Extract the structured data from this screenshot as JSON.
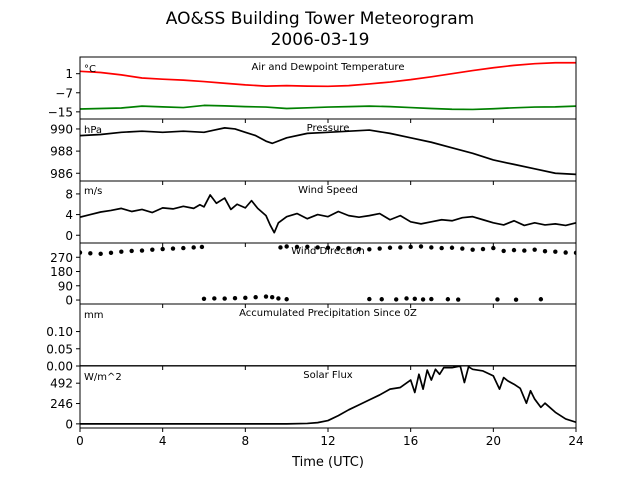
{
  "title": "AO&SS Building Tower Meteorogram",
  "subtitle": "2006-03-19",
  "xlabel": "Time (UTC)",
  "colors": {
    "temperature": "#ff0000",
    "dewpoint": "#008000",
    "data": "#000000",
    "frame": "#000000"
  },
  "chart_data": [
    {
      "type": "line",
      "panel": "temperature",
      "title": "Air and Dewpoint Temperature",
      "unit": "°C",
      "ylim": [
        -18,
        8
      ],
      "yticks": [
        1,
        -7,
        -15
      ],
      "ytick_labels": [
        "1",
        "−7",
        "−15"
      ],
      "xlim": [
        0,
        24
      ],
      "series": [
        {
          "key": "temperature",
          "color": "#ff0000",
          "x": [
            0,
            1,
            2,
            3,
            4,
            5,
            6,
            7,
            8,
            9,
            10,
            11,
            12,
            13,
            14,
            15,
            16,
            17,
            18,
            19,
            20,
            21,
            22,
            23,
            24
          ],
          "values": [
            2.0,
            1.5,
            0.5,
            -0.8,
            -1.3,
            -1.7,
            -2.3,
            -3.0,
            -3.7,
            -4.2,
            -4.0,
            -4.2,
            -4.3,
            -4.0,
            -3.3,
            -2.5,
            -1.5,
            -0.3,
            1.0,
            2.3,
            3.5,
            4.5,
            5.2,
            5.6,
            5.6
          ]
        },
        {
          "key": "dewpoint",
          "color": "#008000",
          "x": [
            0,
            1,
            2,
            3,
            4,
            5,
            6,
            7,
            8,
            9,
            10,
            11,
            12,
            13,
            14,
            15,
            16,
            17,
            18,
            19,
            20,
            21,
            22,
            23,
            24
          ],
          "values": [
            -13.8,
            -13.6,
            -13.4,
            -12.6,
            -12.9,
            -13.2,
            -12.3,
            -12.5,
            -12.8,
            -13.0,
            -13.6,
            -13.3,
            -13.0,
            -12.8,
            -12.6,
            -12.8,
            -13.2,
            -13.6,
            -13.9,
            -14.0,
            -13.7,
            -13.3,
            -13.0,
            -12.9,
            -12.6
          ]
        }
      ]
    },
    {
      "type": "line",
      "panel": "pressure",
      "title": "Pressure",
      "unit": "hPa",
      "ylim": [
        985.3,
        990.9
      ],
      "yticks": [
        990,
        988,
        986
      ],
      "ytick_labels": [
        "990",
        "988",
        "986"
      ],
      "xlim": [
        0,
        24
      ],
      "series": [
        {
          "key": "pressure",
          "color": "#000000",
          "x": [
            0,
            1,
            2,
            3,
            4,
            5,
            6,
            6.5,
            7,
            7.5,
            8,
            8.5,
            9,
            9.3,
            10,
            11,
            12,
            13,
            14,
            15,
            16,
            17,
            18,
            19,
            20,
            21,
            22,
            23,
            24
          ],
          "values": [
            989.4,
            989.5,
            989.7,
            989.8,
            989.7,
            989.8,
            989.7,
            989.9,
            990.1,
            990.0,
            989.7,
            989.4,
            988.9,
            988.7,
            989.2,
            989.6,
            989.7,
            989.8,
            989.9,
            989.6,
            989.2,
            988.8,
            988.3,
            987.8,
            987.2,
            986.8,
            986.4,
            986.0,
            985.9
          ]
        }
      ]
    },
    {
      "type": "line",
      "panel": "wind-speed",
      "title": "Wind Speed",
      "unit": "m/s",
      "ylim": [
        -1.5,
        10.5
      ],
      "yticks": [
        8,
        4,
        0
      ],
      "ytick_labels": [
        "8",
        "4",
        "0"
      ],
      "xlim": [
        0,
        24
      ],
      "series": [
        {
          "key": "wind-speed",
          "color": "#000000",
          "x": [
            0,
            0.5,
            1,
            1.5,
            2,
            2.5,
            3,
            3.5,
            4,
            4.5,
            5,
            5.5,
            5.8,
            6,
            6.3,
            6.6,
            7,
            7.3,
            7.6,
            8,
            8.3,
            8.6,
            9,
            9.2,
            9.4,
            9.6,
            10,
            10.5,
            11,
            11.5,
            12,
            12.5,
            13,
            13.5,
            14,
            14.5,
            15,
            15.5,
            16,
            16.5,
            17,
            17.5,
            18,
            18.5,
            19,
            19.5,
            20,
            20.5,
            21,
            21.5,
            22,
            22.5,
            23,
            23.5,
            24
          ],
          "values": [
            3.5,
            4.0,
            4.5,
            4.8,
            5.2,
            4.6,
            5.0,
            4.4,
            5.3,
            5.1,
            5.6,
            5.2,
            5.9,
            5.5,
            7.8,
            6.2,
            7.2,
            5.0,
            6.0,
            5.3,
            6.7,
            5.2,
            3.8,
            2.0,
            0.5,
            2.4,
            3.6,
            4.2,
            3.2,
            4.0,
            3.6,
            4.6,
            3.8,
            3.5,
            3.8,
            4.2,
            3.0,
            3.8,
            2.6,
            2.2,
            2.6,
            3.0,
            2.8,
            3.4,
            3.6,
            3.0,
            2.4,
            2.0,
            2.8,
            1.9,
            2.4,
            2.0,
            2.2,
            1.9,
            2.4
          ]
        }
      ]
    },
    {
      "type": "scatter",
      "panel": "wind-direction",
      "title": "Wind Direction",
      "ylim": [
        -25,
        360
      ],
      "yticks": [
        270,
        180,
        90,
        0
      ],
      "ytick_labels": [
        "270",
        "180",
        "90",
        "0"
      ],
      "xlim": [
        0,
        24
      ],
      "series": [
        {
          "key": "wind-direction-high",
          "color": "#000000",
          "x": [
            0,
            0.5,
            1,
            1.5,
            2,
            2.5,
            3,
            3.5,
            4,
            4.5,
            5,
            5.5,
            5.9,
            9.7,
            10,
            10.5,
            11,
            11.5,
            12,
            12.5,
            13,
            13.5,
            14,
            14.5,
            15,
            15.5,
            16,
            16.5,
            17,
            17.5,
            18,
            18.5,
            19,
            19.5,
            20,
            20.5,
            21,
            21.5,
            22,
            22.5,
            23,
            23.5,
            24
          ],
          "values": [
            300,
            295,
            292,
            298,
            305,
            310,
            312,
            318,
            322,
            325,
            328,
            332,
            335,
            332,
            338,
            335,
            336,
            332,
            330,
            328,
            325,
            322,
            320,
            325,
            330,
            332,
            335,
            338,
            332,
            328,
            330,
            325,
            318,
            322,
            328,
            310,
            315,
            312,
            318,
            308,
            305,
            300,
            298
          ]
        },
        {
          "key": "wind-direction-low",
          "color": "#000000",
          "x": [
            6,
            6.5,
            7,
            7.5,
            8,
            8.5,
            9,
            9.3,
            9.6,
            10,
            14,
            14.6,
            15.3,
            15.8,
            16.2,
            16.6,
            17,
            17.8,
            18.3,
            20.2,
            21.1,
            22.3
          ],
          "values": [
            8,
            10,
            9,
            12,
            14,
            18,
            22,
            18,
            10,
            5,
            6,
            5,
            4,
            10,
            8,
            4,
            6,
            5,
            3,
            4,
            2,
            5
          ]
        }
      ]
    },
    {
      "type": "line",
      "panel": "precipitation",
      "title": "Accumulated Precipitation Since 0Z",
      "unit": "mm",
      "ylim": [
        0,
        0.18
      ],
      "yticks": [
        0.1,
        0.05,
        0.0
      ],
      "ytick_labels": [
        "0.10",
        "0.05",
        "0.00"
      ],
      "xlim": [
        0,
        24
      ],
      "series": [
        {
          "key": "precipitation",
          "color": "#000000",
          "x": [
            0,
            24
          ],
          "values": [
            0,
            0
          ]
        }
      ]
    },
    {
      "type": "line",
      "panel": "solar-flux",
      "title": "Solar Flux",
      "unit": "W/m^2",
      "ylim": [
        -50,
        700
      ],
      "yticks": [
        492,
        246,
        0
      ],
      "ytick_labels": [
        "492",
        "246",
        "0"
      ],
      "xlim": [
        0,
        24
      ],
      "xticks": [
        0,
        4,
        8,
        12,
        16,
        20,
        24
      ],
      "xtick_labels": [
        "0",
        "4",
        "8",
        "12",
        "16",
        "20",
        "24"
      ],
      "series": [
        {
          "key": "solar-flux",
          "color": "#000000",
          "x": [
            0,
            2,
            4,
            6,
            8,
            10,
            11,
            11.5,
            12,
            12.5,
            13,
            13.5,
            14,
            14.5,
            15,
            15.5,
            16,
            16.2,
            16.4,
            16.6,
            16.8,
            17,
            17.2,
            17.4,
            17.6,
            18,
            18.4,
            18.6,
            18.8,
            19,
            19.5,
            20,
            20.3,
            20.5,
            20.7,
            21,
            21.3,
            21.6,
            21.8,
            22,
            22.3,
            22.5,
            23,
            23.5,
            24
          ],
          "values": [
            0,
            0,
            0,
            0,
            0,
            0,
            5,
            15,
            40,
            100,
            170,
            230,
            290,
            350,
            420,
            440,
            530,
            380,
            600,
            420,
            650,
            530,
            660,
            600,
            680,
            680,
            700,
            500,
            690,
            660,
            640,
            580,
            420,
            560,
            520,
            480,
            430,
            250,
            400,
            300,
            200,
            250,
            140,
            60,
            20
          ]
        }
      ]
    }
  ]
}
